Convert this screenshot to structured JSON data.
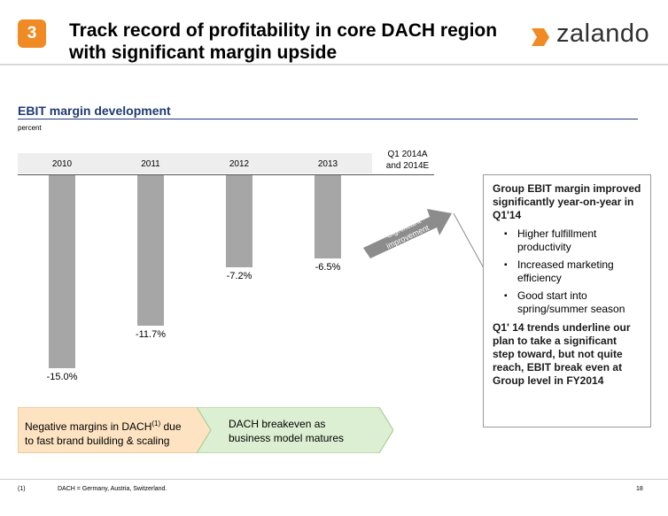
{
  "header": {
    "section_number": "3",
    "title_line1": "Track record of profitability in core DACH region",
    "title_line2": "with significant margin upside",
    "brand": "zalando",
    "brand_color": "#f08a24"
  },
  "chart": {
    "subtitle": "EBIT margin development",
    "unit": "percent",
    "q1_label_line1": "Q1 2014A",
    "q1_label_line2": "and 2014E",
    "arrow_label_line1": "Significant",
    "arrow_label_line2": "improvement"
  },
  "chart_data": {
    "type": "bar",
    "title": "EBIT margin development",
    "ylabel": "percent",
    "categories": [
      "2010",
      "2011",
      "2012",
      "2013"
    ],
    "values": [
      -15.0,
      -11.7,
      -7.2,
      -6.5
    ],
    "labels": [
      "-15.0%",
      "-11.7%",
      "-7.2%",
      "-6.5%"
    ],
    "ylim": [
      -16,
      0
    ]
  },
  "callout": {
    "heading": "Group EBIT margin improved significantly year-on-year in Q1'14",
    "bullets": [
      "Higher fulfillment productivity",
      "Increased marketing efficiency",
      "Good start into spring/summer season"
    ],
    "conclusion": "Q1' 14 trends underline our plan to take a significant step toward, but not quite reach, EBIT break even at Group level in FY2014"
  },
  "chevrons": {
    "first_text_a": "Negative margins in DACH",
    "first_sup": "(1)",
    "first_text_b": " due",
    "first_line2": "to fast brand building & scaling",
    "second_line1": "DACH breakeven as",
    "second_line2": "business model matures"
  },
  "footer": {
    "note_number": "(1)",
    "note_text": "DACH = Germany, Austria, Switzerland.",
    "page_number": "18"
  }
}
